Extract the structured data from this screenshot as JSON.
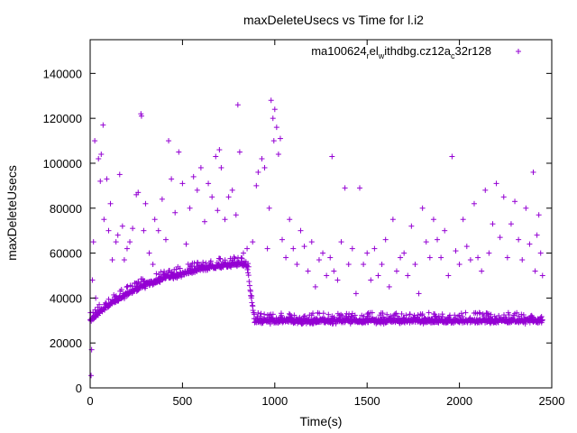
{
  "chart_data": {
    "type": "scatter",
    "title": "maxDeleteUsecs vs Time for l.i2",
    "xlabel": "Time(s)",
    "ylabel": "maxDeleteUsecs",
    "xlim": [
      0,
      2500
    ],
    "ylim": [
      0,
      155000
    ],
    "x_ticks": [
      0,
      500,
      1000,
      1500,
      2000,
      2500
    ],
    "y_ticks": [
      0,
      20000,
      40000,
      60000,
      80000,
      100000,
      120000,
      140000
    ],
    "grid": false,
    "legend_position": "top-right",
    "legend_marker": "+",
    "series": [
      {
        "name": "ma100624_rel_withdbg.cz12a_c32r128",
        "name_parts": [
          "ma100624",
          "r",
          "el",
          "w",
          "ithdbg.cz12a",
          "c",
          "32r128"
        ],
        "color": "#9400d3",
        "marker": "+",
        "base_curve": [
          [
            0,
            29000
          ],
          [
            50,
            33000
          ],
          [
            100,
            36000
          ],
          [
            200,
            41000
          ],
          [
            300,
            45000
          ],
          [
            400,
            48000
          ],
          [
            500,
            50000
          ],
          [
            600,
            52000
          ],
          [
            700,
            53500
          ],
          [
            800,
            54500
          ],
          [
            850,
            54000
          ],
          [
            870,
            40000
          ],
          [
            890,
            29000
          ],
          [
            1000,
            29000
          ],
          [
            1500,
            29000
          ],
          [
            2000,
            29000
          ],
          [
            2450,
            29000
          ]
        ],
        "values": [
          [
            5,
            5500
          ],
          [
            8,
            17000
          ],
          [
            12,
            48000
          ],
          [
            18,
            65000
          ],
          [
            25,
            110000
          ],
          [
            30,
            40000
          ],
          [
            45,
            102000
          ],
          [
            55,
            92000
          ],
          [
            60,
            104000
          ],
          [
            70,
            117000
          ],
          [
            75,
            75000
          ],
          [
            90,
            93000
          ],
          [
            100,
            70000
          ],
          [
            110,
            82000
          ],
          [
            120,
            57000
          ],
          [
            140,
            65000
          ],
          [
            150,
            68000
          ],
          [
            160,
            95000
          ],
          [
            175,
            72000
          ],
          [
            185,
            57000
          ],
          [
            200,
            62000
          ],
          [
            215,
            65000
          ],
          [
            230,
            71000
          ],
          [
            250,
            86000
          ],
          [
            260,
            87000
          ],
          [
            275,
            122000
          ],
          [
            278,
            121000
          ],
          [
            290,
            70000
          ],
          [
            300,
            82000
          ],
          [
            320,
            60000
          ],
          [
            340,
            55000
          ],
          [
            350,
            75000
          ],
          [
            370,
            70000
          ],
          [
            390,
            84000
          ],
          [
            410,
            66000
          ],
          [
            425,
            110000
          ],
          [
            440,
            93000
          ],
          [
            460,
            78000
          ],
          [
            480,
            105000
          ],
          [
            500,
            91000
          ],
          [
            520,
            64000
          ],
          [
            540,
            80000
          ],
          [
            560,
            94000
          ],
          [
            580,
            88000
          ],
          [
            600,
            98000
          ],
          [
            620,
            74000
          ],
          [
            640,
            91000
          ],
          [
            660,
            85000
          ],
          [
            680,
            103000
          ],
          [
            690,
            79000
          ],
          [
            700,
            106000
          ],
          [
            710,
            98000
          ],
          [
            730,
            75000
          ],
          [
            750,
            85000
          ],
          [
            770,
            88000
          ],
          [
            790,
            77000
          ],
          [
            800,
            126000
          ],
          [
            810,
            105000
          ],
          [
            830,
            60000
          ],
          [
            850,
            62000
          ],
          [
            880,
            65000
          ],
          [
            900,
            90000
          ],
          [
            910,
            96000
          ],
          [
            930,
            102000
          ],
          [
            945,
            98000
          ],
          [
            960,
            62000
          ],
          [
            970,
            80000
          ],
          [
            980,
            128000
          ],
          [
            990,
            120000
          ],
          [
            995,
            110000
          ],
          [
            1000,
            124000
          ],
          [
            1010,
            116000
          ],
          [
            1020,
            104000
          ],
          [
            1030,
            111000
          ],
          [
            1040,
            66000
          ],
          [
            1060,
            58000
          ],
          [
            1080,
            75000
          ],
          [
            1100,
            62000
          ],
          [
            1120,
            55000
          ],
          [
            1140,
            70000
          ],
          [
            1160,
            63000
          ],
          [
            1180,
            52000
          ],
          [
            1200,
            65000
          ],
          [
            1220,
            45000
          ],
          [
            1240,
            57000
          ],
          [
            1260,
            60000
          ],
          [
            1280,
            50000
          ],
          [
            1300,
            58000
          ],
          [
            1310,
            103000
          ],
          [
            1320,
            52000
          ],
          [
            1340,
            48000
          ],
          [
            1360,
            65000
          ],
          [
            1380,
            89000
          ],
          [
            1400,
            55000
          ],
          [
            1420,
            62000
          ],
          [
            1440,
            42000
          ],
          [
            1460,
            89000
          ],
          [
            1480,
            55000
          ],
          [
            1500,
            60000
          ],
          [
            1520,
            48000
          ],
          [
            1540,
            62000
          ],
          [
            1560,
            50000
          ],
          [
            1580,
            55000
          ],
          [
            1600,
            66000
          ],
          [
            1620,
            45000
          ],
          [
            1640,
            75000
          ],
          [
            1660,
            52000
          ],
          [
            1680,
            58000
          ],
          [
            1700,
            60000
          ],
          [
            1720,
            50000
          ],
          [
            1740,
            72000
          ],
          [
            1760,
            55000
          ],
          [
            1780,
            42000
          ],
          [
            1800,
            80000
          ],
          [
            1820,
            65000
          ],
          [
            1840,
            58000
          ],
          [
            1860,
            75000
          ],
          [
            1880,
            66000
          ],
          [
            1900,
            58000
          ],
          [
            1920,
            70000
          ],
          [
            1940,
            50000
          ],
          [
            1960,
            103000
          ],
          [
            1980,
            61000
          ],
          [
            2000,
            55000
          ],
          [
            2020,
            75000
          ],
          [
            2040,
            63000
          ],
          [
            2060,
            57000
          ],
          [
            2080,
            82000
          ],
          [
            2100,
            58000
          ],
          [
            2120,
            52000
          ],
          [
            2140,
            88000
          ],
          [
            2160,
            60000
          ],
          [
            2180,
            73000
          ],
          [
            2200,
            91000
          ],
          [
            2220,
            67000
          ],
          [
            2240,
            85000
          ],
          [
            2260,
            58000
          ],
          [
            2280,
            73000
          ],
          [
            2300,
            83000
          ],
          [
            2320,
            66000
          ],
          [
            2340,
            57000
          ],
          [
            2360,
            80000
          ],
          [
            2380,
            64000
          ],
          [
            2400,
            96000
          ],
          [
            2410,
            52000
          ],
          [
            2420,
            68000
          ],
          [
            2430,
            77000
          ],
          [
            2440,
            60000
          ],
          [
            2450,
            50000
          ]
        ]
      }
    ]
  }
}
